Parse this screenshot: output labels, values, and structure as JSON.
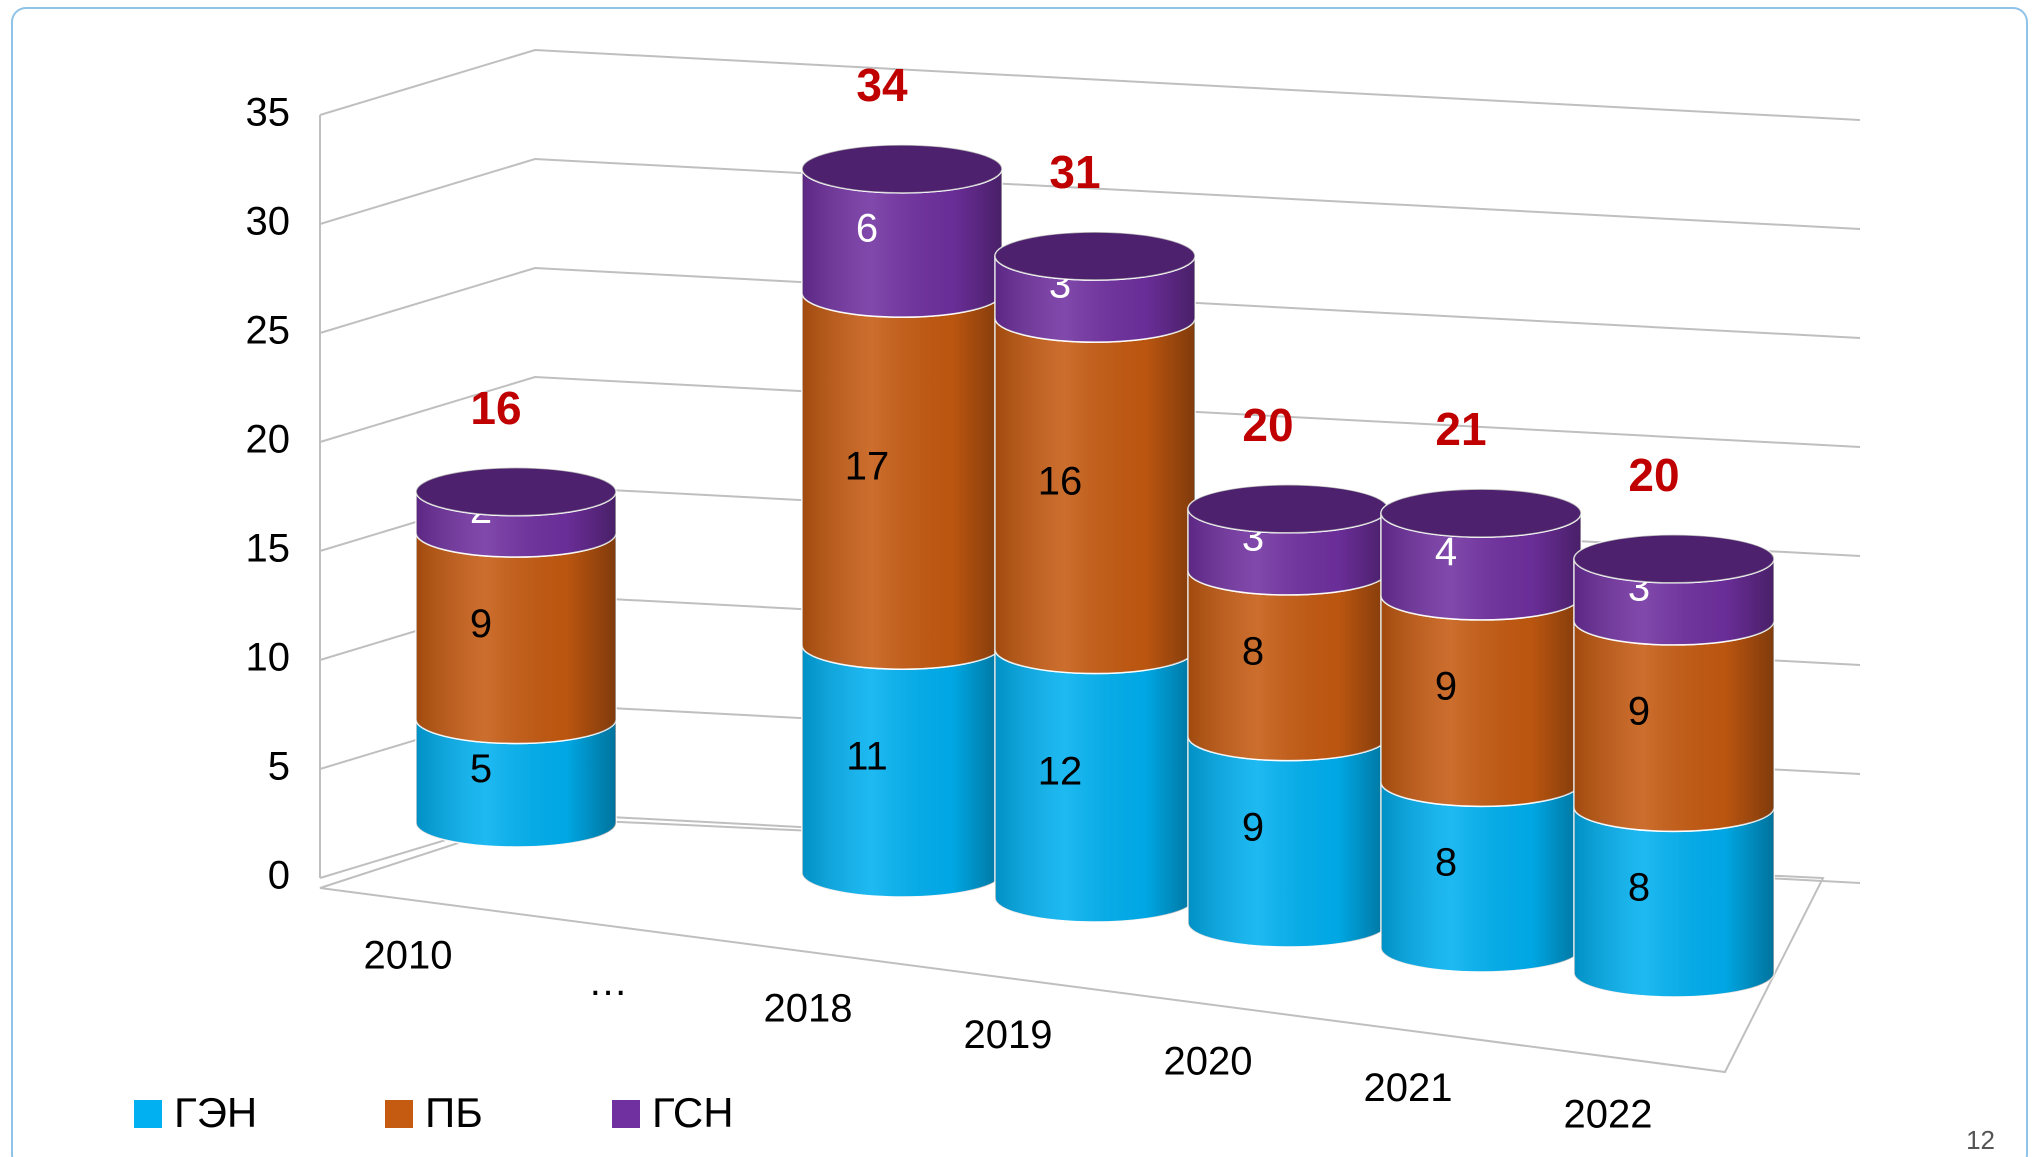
{
  "chart_data": {
    "type": "bar3d_stacked",
    "categories": [
      "2010",
      "…",
      "2018",
      "2019",
      "2020",
      "2021",
      "2022"
    ],
    "series": [
      {
        "name": "ГЭН",
        "color": "#00b0f0",
        "values": [
          5,
          null,
          11,
          12,
          9,
          8,
          8
        ]
      },
      {
        "name": "ПБ",
        "color": "#c55a11",
        "values": [
          9,
          null,
          17,
          16,
          8,
          9,
          9
        ]
      },
      {
        "name": "ГСН",
        "color": "#7030a0",
        "values": [
          2,
          null,
          6,
          3,
          3,
          4,
          3
        ]
      }
    ],
    "totals": [
      16,
      null,
      34,
      31,
      20,
      21,
      20
    ],
    "totals_color": "#c00000",
    "ylim": [
      0,
      35
    ],
    "yticks": [
      0,
      5,
      10,
      15,
      20,
      25,
      30,
      35
    ],
    "grid": true,
    "legend": "bottom-left",
    "page_number": "12"
  }
}
